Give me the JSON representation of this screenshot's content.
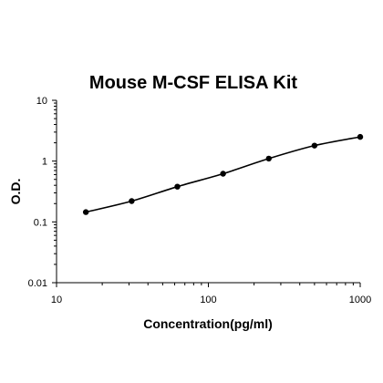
{
  "chart_data": {
    "type": "scatter",
    "title": "Mouse M-CSF ELISA Kit",
    "xlabel": "Concentration(pg/ml)",
    "ylabel": "O.D.",
    "xscale": "log",
    "yscale": "log",
    "xlim": [
      10,
      1000
    ],
    "ylim": [
      0.01,
      10
    ],
    "x_ticks": [
      10,
      100,
      1000
    ],
    "y_ticks": [
      0.01,
      0.1,
      1,
      10
    ],
    "x_tick_labels": [
      "10",
      "100",
      "1000"
    ],
    "y_tick_labels": [
      "0.01",
      "0.1",
      "1",
      "10"
    ],
    "grid": false,
    "legend": "none",
    "series": [
      {
        "x": [
          15.6,
          31.25,
          62.5,
          125,
          250,
          500,
          1000
        ],
        "y": [
          0.145,
          0.22,
          0.38,
          0.62,
          1.1,
          1.8,
          2.5
        ],
        "fit_curve": true
      }
    ]
  }
}
